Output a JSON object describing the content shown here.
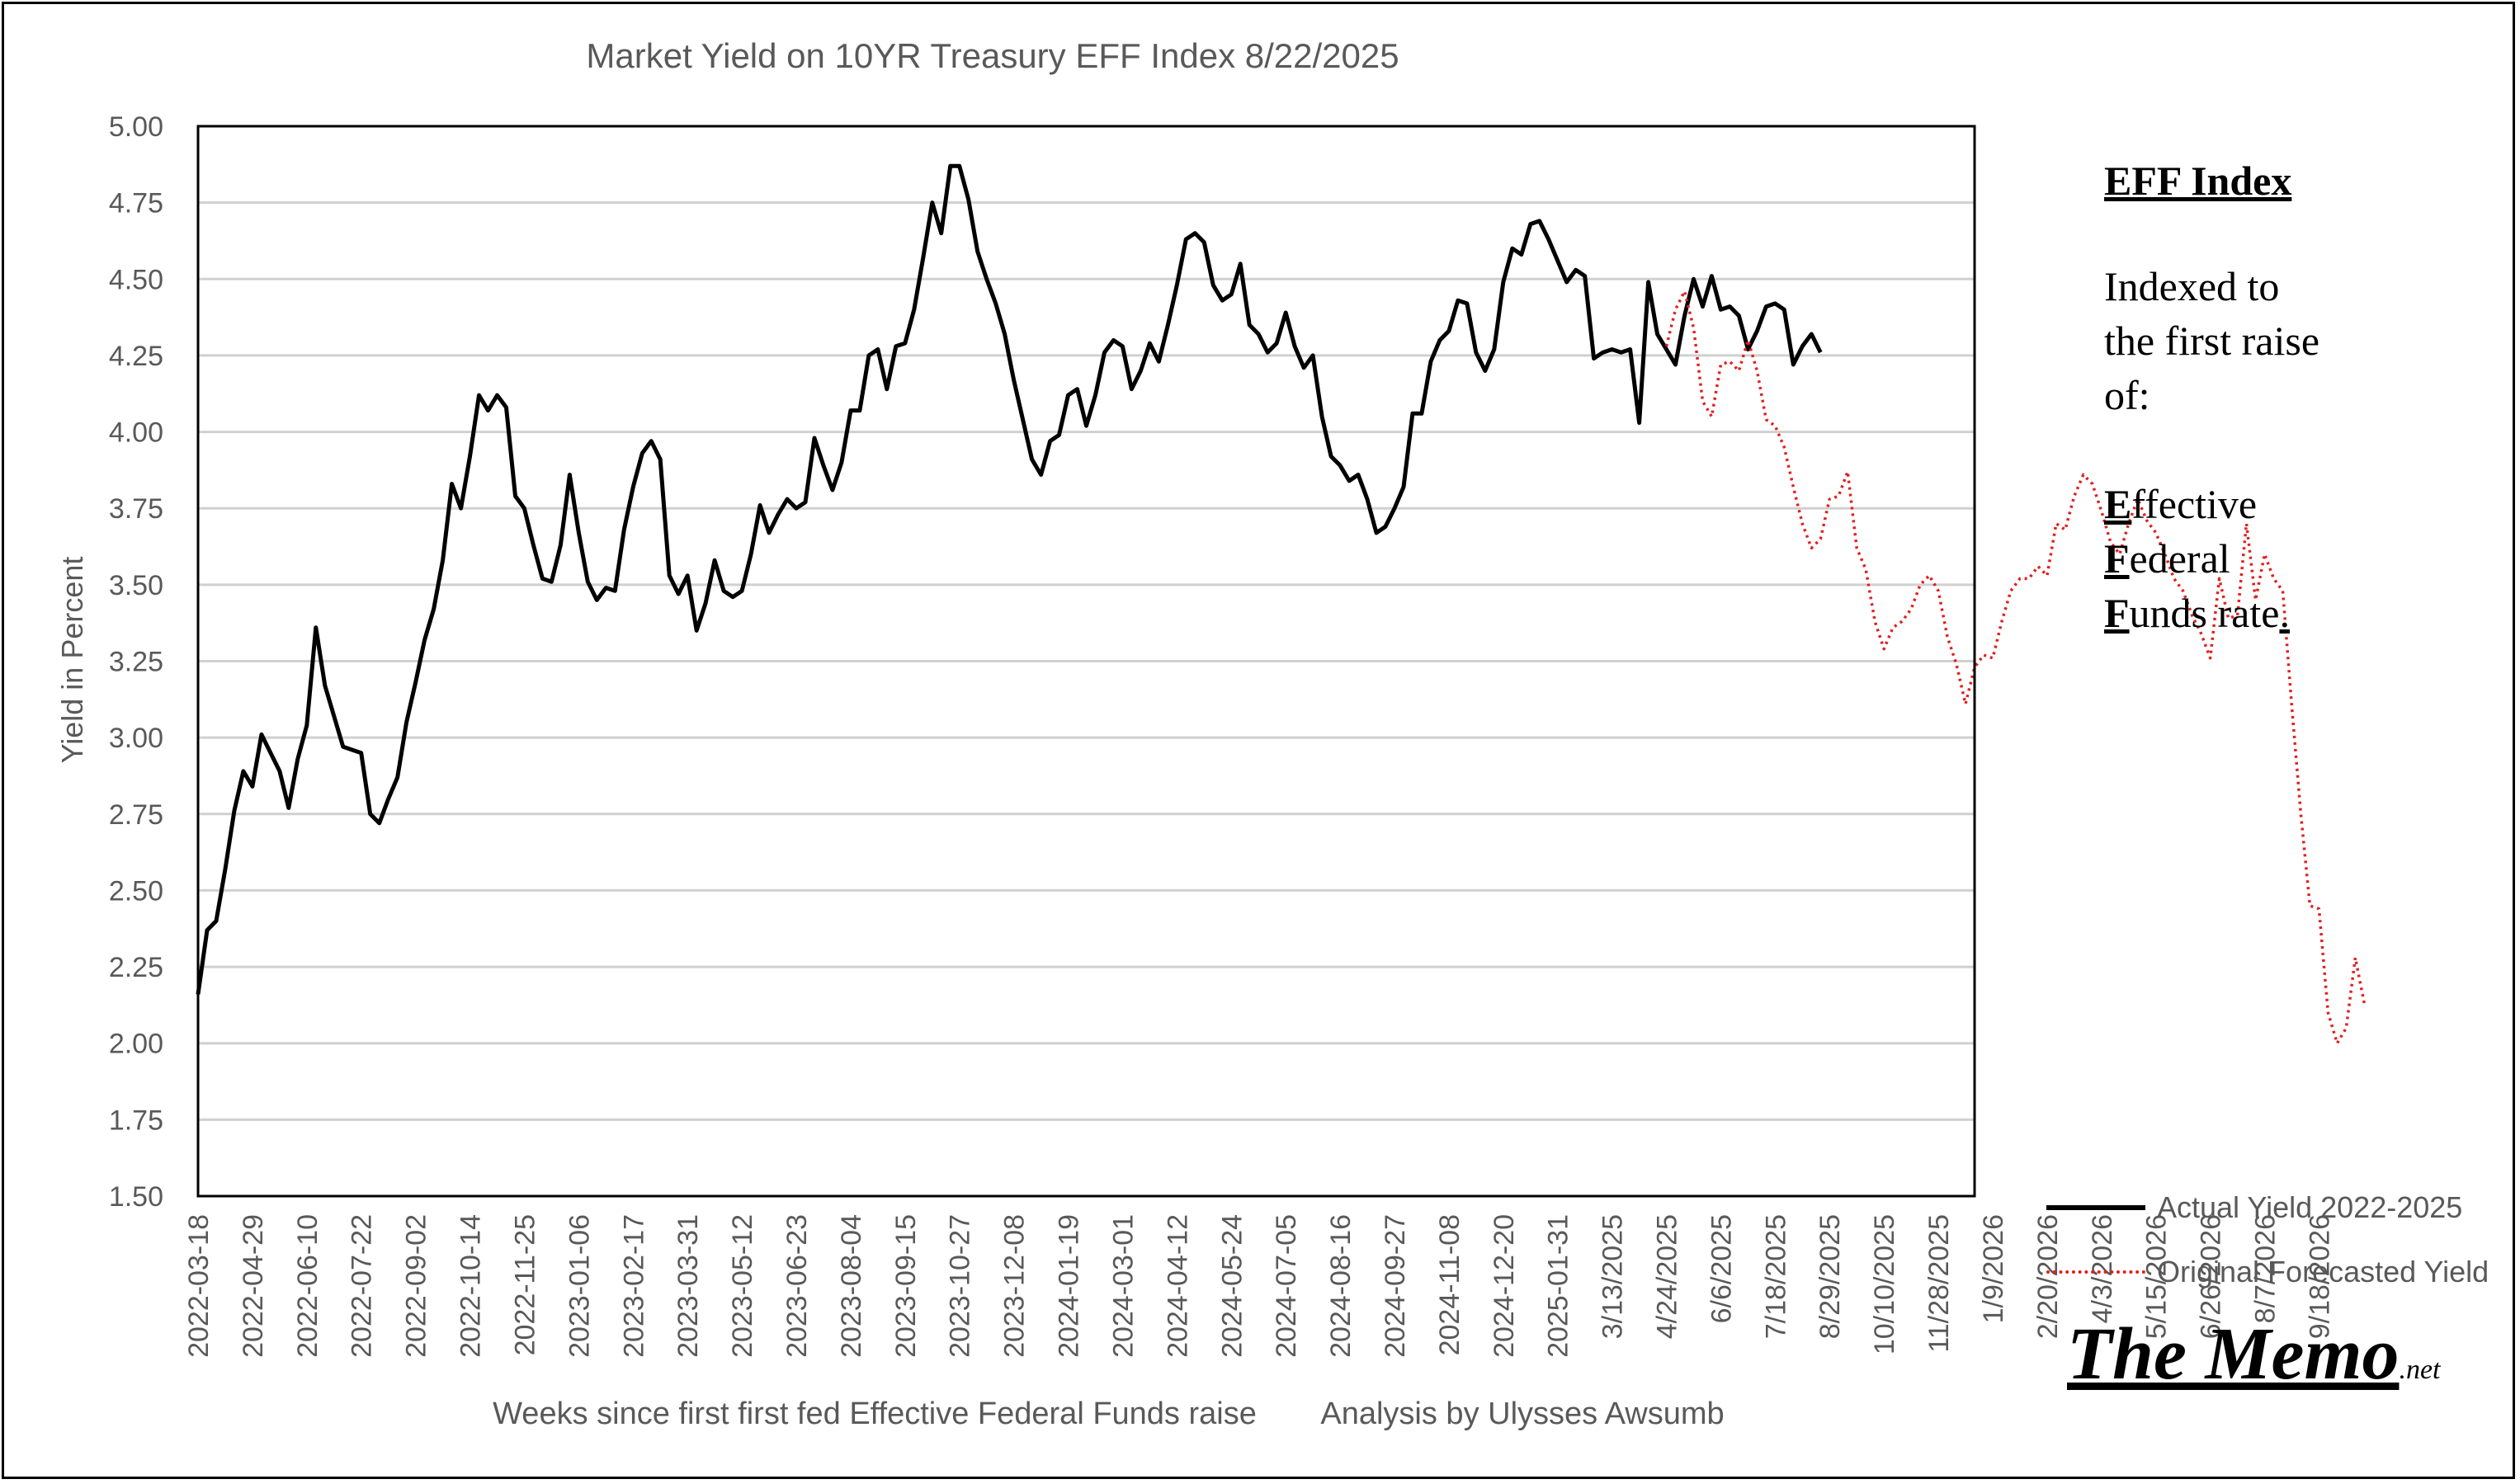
{
  "chart_data": {
    "type": "line",
    "title": "Market Yield on 10YR Treasury EFF Index 8/22/2025",
    "ylabel": "Yield in Percent",
    "xlabel": "Weeks since first first fed Effective Federal Funds raise",
    "credit": "Analysis by Ulysses Awsumb",
    "ylim": [
      1.5,
      5.0
    ],
    "yticks": [
      "1.50",
      "1.75",
      "2.00",
      "2.25",
      "2.50",
      "2.75",
      "3.00",
      "3.25",
      "3.50",
      "3.75",
      "4.00",
      "4.25",
      "4.50",
      "4.75",
      "5.00"
    ],
    "grid": true,
    "legend_position": "right",
    "x_count": 197,
    "x_tick_every": 6,
    "x_tick_labels": [
      "2022-03-18",
      "2022-04-29",
      "2022-06-10",
      "2022-07-22",
      "2022-09-02",
      "2022-10-14",
      "2022-11-25",
      "2023-01-06",
      "2023-02-17",
      "2023-03-31",
      "2023-05-12",
      "2023-06-23",
      "2023-08-04",
      "2023-09-15",
      "2023-10-27",
      "2023-12-08",
      "2024-01-19",
      "2024-03-01",
      "2024-04-12",
      "2024-05-24",
      "2024-07-05",
      "2024-08-16",
      "2024-09-27",
      "2024-11-08",
      "2024-12-20",
      "2025-01-31",
      "3/13/2025",
      "4/24/2025",
      "6/6/2025",
      "7/18/2025",
      "8/29/2025",
      "10/10/2025",
      "11/28/2025",
      "1/9/2026",
      "2/20/2026",
      "4/3/2026",
      "5/15/2026",
      "6/26/2026",
      "8/7/2026",
      "9/18/2026"
    ],
    "series": [
      {
        "name": "Actual Yield 2022-2025",
        "color": "#000000",
        "style": "solid",
        "start_index": 0,
        "values": [
          2.16,
          2.37,
          2.4,
          2.57,
          2.76,
          2.89,
          2.84,
          3.01,
          2.95,
          2.89,
          2.77,
          2.93,
          3.04,
          3.36,
          3.17,
          3.07,
          2.97,
          2.96,
          2.95,
          2.75,
          2.72,
          2.8,
          2.87,
          3.05,
          3.18,
          3.32,
          3.42,
          3.58,
          3.83,
          3.75,
          3.92,
          4.12,
          4.07,
          4.12,
          4.08,
          3.79,
          3.75,
          3.63,
          3.52,
          3.51,
          3.63,
          3.86,
          3.67,
          3.51,
          3.45,
          3.49,
          3.48,
          3.68,
          3.82,
          3.93,
          3.97,
          3.91,
          3.53,
          3.47,
          3.53,
          3.35,
          3.44,
          3.58,
          3.48,
          3.46,
          3.48,
          3.6,
          3.76,
          3.67,
          3.73,
          3.78,
          3.75,
          3.77,
          3.98,
          3.89,
          3.81,
          3.9,
          4.07,
          4.07,
          4.25,
          4.27,
          4.14,
          4.28,
          4.29,
          4.4,
          4.57,
          4.75,
          4.65,
          4.87,
          4.87,
          4.76,
          4.59,
          4.5,
          4.42,
          4.32,
          4.17,
          4.04,
          3.91,
          3.86,
          3.97,
          3.99,
          4.12,
          4.14,
          4.02,
          4.12,
          4.26,
          4.3,
          4.28,
          4.14,
          4.2,
          4.29,
          4.23,
          4.35,
          4.48,
          4.63,
          4.65,
          4.62,
          4.48,
          4.43,
          4.45,
          4.55,
          4.35,
          4.32,
          4.26,
          4.29,
          4.39,
          4.28,
          4.21,
          4.25,
          4.05,
          3.92,
          3.89,
          3.84,
          3.86,
          3.78,
          3.67,
          3.69,
          3.75,
          3.82,
          4.06,
          4.06,
          4.23,
          4.3,
          4.33,
          4.43,
          4.42,
          4.26,
          4.2,
          4.27,
          4.49,
          4.6,
          4.58,
          4.68,
          4.69,
          4.63,
          4.56,
          4.49,
          4.53,
          4.51,
          4.24,
          4.26,
          4.27,
          4.26,
          4.27,
          4.03,
          4.49,
          4.32,
          4.27,
          4.22,
          4.38,
          4.5,
          4.41,
          4.51,
          4.4,
          4.41,
          4.38,
          4.27,
          4.33,
          4.41,
          4.42,
          4.4,
          4.22,
          4.28,
          4.32,
          4.26
        ]
      },
      {
        "name": "Original Forecasted Yield",
        "color": "#e02020",
        "style": "dotted",
        "start_index": 162,
        "values": [
          4.28,
          4.4,
          4.46,
          4.34,
          4.1,
          4.05,
          4.22,
          4.23,
          4.2,
          4.3,
          4.2,
          4.04,
          4.02,
          3.95,
          3.82,
          3.7,
          3.62,
          3.65,
          3.78,
          3.79,
          3.87,
          3.62,
          3.55,
          3.38,
          3.29,
          3.36,
          3.38,
          3.42,
          3.5,
          3.53,
          3.48,
          3.33,
          3.24,
          3.11,
          3.23,
          3.27,
          3.26,
          3.38,
          3.48,
          3.52,
          3.52,
          3.56,
          3.53,
          3.7,
          3.68,
          3.79,
          3.86,
          3.83,
          3.74,
          3.64,
          3.6,
          3.7,
          3.78,
          3.71,
          3.67,
          3.6,
          3.52,
          3.48,
          3.4,
          3.34,
          3.26,
          3.52,
          3.39,
          3.4,
          3.7,
          3.45,
          3.6,
          3.52,
          3.48,
          3.1,
          2.75,
          2.45,
          2.44,
          2.1,
          2.0,
          2.05,
          2.28,
          2.13
        ]
      }
    ]
  },
  "sidebar": {
    "title": "EFF Index",
    "lines": [
      "Indexed to",
      "the first raise",
      "of:"
    ],
    "terms": [
      {
        "initial": "E",
        "rest": "ffective"
      },
      {
        "initial": "F",
        "rest": "ederal"
      },
      {
        "initial": "F",
        "rest": "unds rate",
        "tail": "."
      }
    ]
  },
  "brand": {
    "main": "The Memo",
    "suffix": ".net"
  }
}
